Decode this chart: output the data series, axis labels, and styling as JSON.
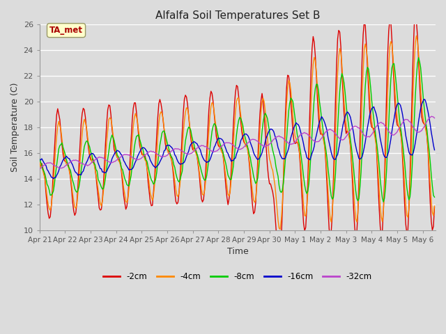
{
  "title": "Alfalfa Soil Temperatures Set B",
  "xlabel": "Time",
  "ylabel": "Soil Temperature (C)",
  "ylim": [
    10,
    26
  ],
  "background_color": "#dcdcdc",
  "plot_bg_color": "#dcdcdc",
  "grid_color": "#ffffff",
  "line_colors": {
    "-2cm": "#dd0000",
    "-4cm": "#ff8800",
    "-8cm": "#00cc00",
    "-16cm": "#0000cc",
    "-32cm": "#bb44cc"
  },
  "legend_labels": [
    "-2cm",
    "-4cm",
    "-8cm",
    "-16cm",
    "-32cm"
  ],
  "annotation_text": "TA_met",
  "annotation_color": "#aa0000",
  "annotation_bg": "#ffffcc",
  "annotation_edge": "#999966",
  "tick_label_color": "#555555",
  "x_tick_labels": [
    "Apr 21",
    "Apr 22",
    "Apr 23",
    "Apr 24",
    "Apr 25",
    "Apr 26",
    "Apr 27",
    "Apr 28",
    "Apr 29",
    "Apr 30",
    "May 1",
    "May 2",
    "May 3",
    "May 4",
    "May 5",
    "May 6"
  ],
  "y_ticks": [
    10,
    12,
    14,
    16,
    18,
    20,
    22,
    24,
    26
  ],
  "figsize": [
    6.4,
    4.8
  ],
  "dpi": 100
}
